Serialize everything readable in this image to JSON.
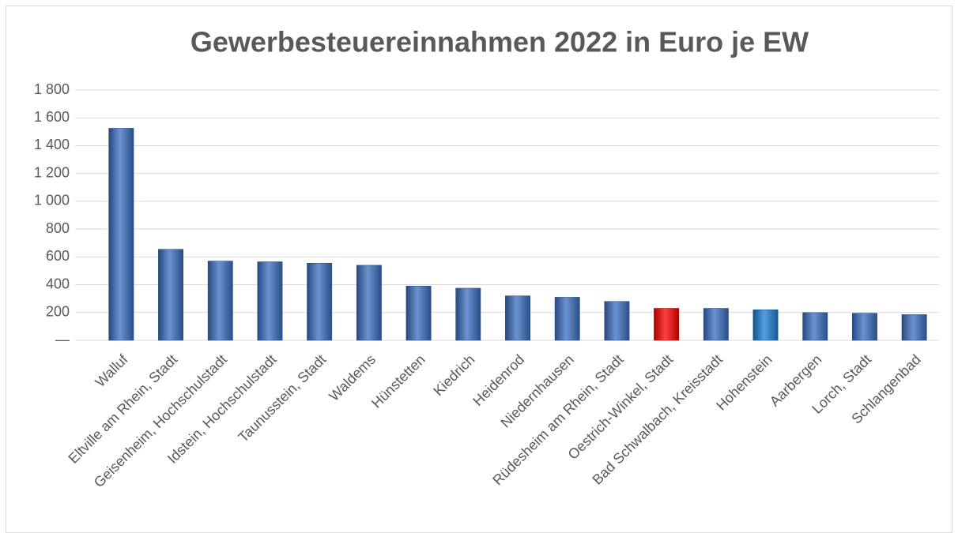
{
  "chart_data": {
    "type": "bar",
    "title": "Gewerbesteuereinnahmen 2022 in Euro je EW",
    "categories": [
      "Walluf",
      "Eltville am Rhein, Stadt",
      "Geisenheim, Hochschulstadt",
      "Idstein, Hochschulstadt",
      "Taunusstein, Stadt",
      "Waldems",
      "Hünstetten",
      "Kiedrich",
      "Heidenrod",
      "Niedernhausen",
      "Rüdesheim am Rhein, Stadt",
      "Oestrich-Winkel, Stadt",
      "Bad Schwalbach, Kreisstadt",
      "Hohenstein",
      "Aarbergen",
      "Lorch, Stadt",
      "Schlangenbad"
    ],
    "values": [
      1525,
      655,
      570,
      565,
      555,
      540,
      390,
      375,
      320,
      310,
      280,
      230,
      230,
      220,
      200,
      195,
      185
    ],
    "colors": [
      "#3b6fc2",
      "#3b6fc2",
      "#3b6fc2",
      "#3b6fc2",
      "#3b6fc2",
      "#3b6fc2",
      "#3b6fc2",
      "#3b6fc2",
      "#3b6fc2",
      "#3b6fc2",
      "#3b6fc2",
      "#ff0000",
      "#3b6fc2",
      "#1a7fd8",
      "#3b6fc2",
      "#3b6fc2",
      "#3b6fc2"
    ],
    "ylim": [
      0,
      1800
    ],
    "yticks": [
      {
        "value": 0,
        "label": "—"
      },
      200,
      400,
      600,
      800,
      {
        "value": 1000,
        "label": "1 000"
      },
      {
        "value": 1200,
        "label": "1 200"
      },
      {
        "value": 1400,
        "label": "1 400"
      },
      {
        "value": 1600,
        "label": "1 600"
      },
      {
        "value": 1800,
        "label": "1 800"
      }
    ],
    "grid": true
  }
}
